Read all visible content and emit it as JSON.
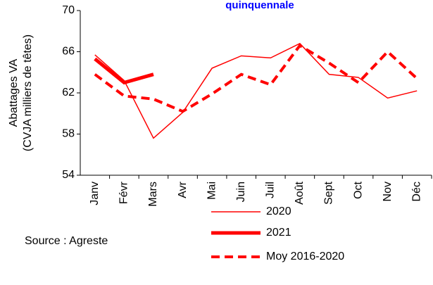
{
  "chart_data": {
    "type": "line",
    "title": "quinquennale",
    "ylabel": [
      "Abattages VA",
      "(CVJA milliers de têtes)"
    ],
    "source": "Source : Agreste",
    "categories": [
      "Janv",
      "Févr",
      "Mars",
      "Avr",
      "Mai",
      "Juin",
      "Juil",
      "Août",
      "Sept",
      "Oct",
      "Nov",
      "Déc"
    ],
    "series": [
      {
        "name": "2020",
        "color": "#ff0000",
        "line_width": 1.5,
        "dashed": false,
        "values": [
          65.7,
          63.2,
          57.6,
          60.1,
          64.4,
          65.6,
          65.4,
          66.8,
          63.8,
          63.5,
          61.5,
          62.2
        ]
      },
      {
        "name": "2021",
        "color": "#ff0000",
        "line_width": 5,
        "dashed": false,
        "values": [
          65.3,
          63.0,
          63.8,
          null,
          null,
          null,
          null,
          null,
          null,
          null,
          null,
          null
        ]
      },
      {
        "name": "Moy 2016-2020",
        "color": "#ff0000",
        "line_width": 4,
        "dashed": true,
        "values": [
          63.8,
          61.7,
          61.4,
          60.2,
          61.9,
          63.8,
          62.8,
          66.6,
          64.9,
          63.0,
          66.0,
          63.4
        ]
      }
    ],
    "ylim": [
      54,
      70
    ],
    "yticks": [
      54,
      58,
      62,
      66,
      70
    ],
    "grid": false
  }
}
